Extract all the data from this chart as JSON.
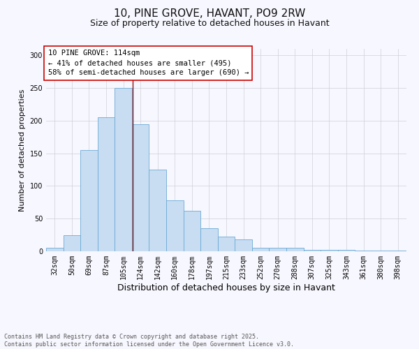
{
  "title": "10, PINE GROVE, HAVANT, PO9 2RW",
  "subtitle": "Size of property relative to detached houses in Havant",
  "xlabel": "Distribution of detached houses by size in Havant",
  "ylabel": "Number of detached properties",
  "bar_labels": [
    "32sqm",
    "50sqm",
    "69sqm",
    "87sqm",
    "105sqm",
    "124sqm",
    "142sqm",
    "160sqm",
    "178sqm",
    "197sqm",
    "215sqm",
    "233sqm",
    "252sqm",
    "270sqm",
    "288sqm",
    "307sqm",
    "325sqm",
    "343sqm",
    "361sqm",
    "380sqm",
    "398sqm"
  ],
  "bar_heights": [
    5,
    25,
    155,
    205,
    250,
    195,
    125,
    78,
    62,
    35,
    22,
    18,
    5,
    5,
    5,
    2,
    2,
    2,
    1,
    1,
    1
  ],
  "bar_color": "#c8ddf2",
  "bar_edge_color": "#6aaad4",
  "vline_x": 4.55,
  "vline_color": "#8b1010",
  "annotation_text": "10 PINE GROVE: 114sqm\n← 41% of detached houses are smaller (495)\n58% of semi-detached houses are larger (690) →",
  "annotation_box_color": "#ffffff",
  "annotation_border_color": "#cc0000",
  "ylim": [
    0,
    310
  ],
  "yticks": [
    0,
    50,
    100,
    150,
    200,
    250,
    300
  ],
  "background_color": "#f7f7ff",
  "grid_color": "#d0d0d8",
  "footer_line1": "Contains HM Land Registry data © Crown copyright and database right 2025.",
  "footer_line2": "Contains public sector information licensed under the Open Government Licence v3.0.",
  "title_fontsize": 11,
  "subtitle_fontsize": 9,
  "xlabel_fontsize": 9,
  "ylabel_fontsize": 8,
  "tick_fontsize": 7,
  "annotation_fontsize": 7.5,
  "footer_fontsize": 6
}
